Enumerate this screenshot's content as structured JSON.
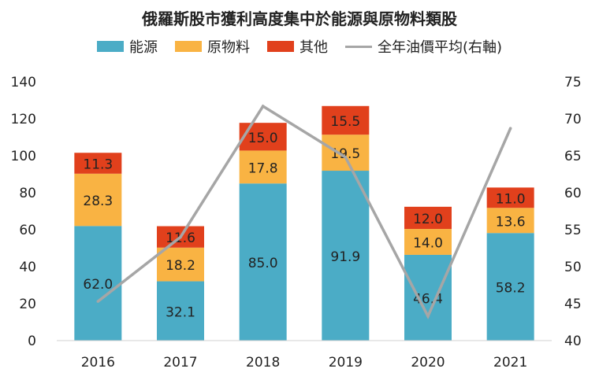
{
  "chart_data": {
    "type": "bar",
    "stacked": true,
    "title": "俄羅斯股市獲利高度集中於能源與原物料類股",
    "categories": [
      "2016",
      "2017",
      "2018",
      "2019",
      "2020",
      "2021"
    ],
    "series": [
      {
        "name": "能源",
        "color": "#4BACC6",
        "values": [
          62.0,
          32.1,
          85.0,
          91.9,
          46.4,
          58.2
        ]
      },
      {
        "name": "原物料",
        "color": "#F9B343",
        "values": [
          28.3,
          18.2,
          17.8,
          19.5,
          14.0,
          13.6
        ]
      },
      {
        "name": "其他",
        "color": "#E1401C",
        "values": [
          11.3,
          11.6,
          15.0,
          15.5,
          12.0,
          11.0
        ]
      }
    ],
    "line_series": {
      "name": "全年油價平均(右軸)",
      "color": "#A6A6A6",
      "axis": "right",
      "values": [
        45.3,
        54.0,
        71.7,
        64.8,
        43.3,
        68.7
      ]
    },
    "y_left": {
      "min": 0,
      "max": 140,
      "ticks": [
        "0",
        "20",
        "40",
        "60",
        "80",
        "100",
        "120",
        "140"
      ]
    },
    "y_right": {
      "min": 40,
      "max": 75,
      "ticks": [
        "40",
        "45",
        "50",
        "55",
        "60",
        "65",
        "70",
        "75"
      ]
    },
    "grid": false,
    "legend": "top"
  }
}
